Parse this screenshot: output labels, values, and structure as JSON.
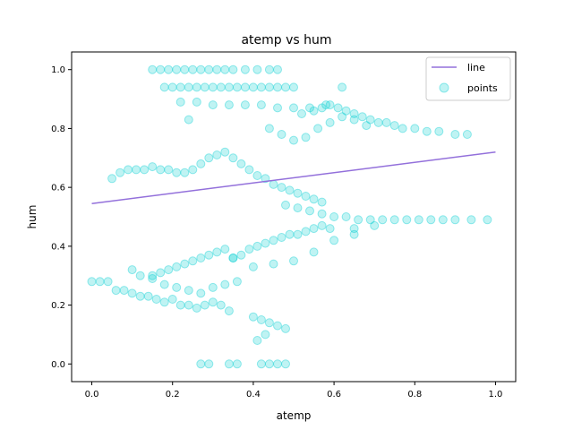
{
  "chart_data": {
    "type": "scatter",
    "title": "atemp vs hum",
    "xlabel": "atemp",
    "ylabel": "hum",
    "xlim": [
      -0.05,
      1.05
    ],
    "ylim": [
      -0.06,
      1.06
    ],
    "xticks": [
      0.0,
      0.2,
      0.4,
      0.6,
      0.8,
      1.0
    ],
    "yticks": [
      0.0,
      0.2,
      0.4,
      0.6,
      0.8,
      1.0
    ],
    "xtick_labels": [
      "0.0",
      "0.2",
      "0.4",
      "0.6",
      "0.8",
      "1.0"
    ],
    "ytick_labels": [
      "0.0",
      "0.2",
      "0.4",
      "0.6",
      "0.8",
      "1.0"
    ],
    "grid": false,
    "legend_position": "top-right",
    "colors": {
      "points": "#00ced1",
      "line": "#9370db"
    },
    "series": [
      {
        "name": "line",
        "kind": "line",
        "x": [
          0.0,
          1.0
        ],
        "y": [
          0.545,
          0.72
        ]
      },
      {
        "name": "points",
        "kind": "scatter",
        "x": [
          0.15,
          0.17,
          0.19,
          0.21,
          0.23,
          0.25,
          0.27,
          0.29,
          0.31,
          0.33,
          0.35,
          0.38,
          0.41,
          0.44,
          0.46,
          0.18,
          0.2,
          0.22,
          0.24,
          0.26,
          0.28,
          0.3,
          0.32,
          0.34,
          0.36,
          0.38,
          0.4,
          0.42,
          0.44,
          0.46,
          0.48,
          0.5,
          0.22,
          0.26,
          0.3,
          0.34,
          0.38,
          0.42,
          0.46,
          0.5,
          0.54,
          0.58,
          0.52,
          0.55,
          0.57,
          0.59,
          0.61,
          0.63,
          0.65,
          0.67,
          0.69,
          0.71,
          0.73,
          0.75,
          0.77,
          0.8,
          0.83,
          0.86,
          0.9,
          0.93,
          0.44,
          0.47,
          0.5,
          0.53,
          0.56,
          0.59,
          0.62,
          0.65,
          0.68,
          0.05,
          0.07,
          0.09,
          0.11,
          0.13,
          0.15,
          0.17,
          0.19,
          0.21,
          0.23,
          0.25,
          0.27,
          0.29,
          0.31,
          0.33,
          0.35,
          0.37,
          0.39,
          0.41,
          0.43,
          0.45,
          0.47,
          0.49,
          0.51,
          0.53,
          0.55,
          0.57,
          0.48,
          0.51,
          0.54,
          0.57,
          0.6,
          0.63,
          0.66,
          0.69,
          0.72,
          0.75,
          0.78,
          0.81,
          0.84,
          0.87,
          0.9,
          0.94,
          0.98,
          0.15,
          0.17,
          0.19,
          0.21,
          0.23,
          0.25,
          0.27,
          0.29,
          0.31,
          0.33,
          0.35,
          0.37,
          0.39,
          0.41,
          0.43,
          0.45,
          0.47,
          0.49,
          0.51,
          0.53,
          0.55,
          0.57,
          0.59,
          0.35,
          0.4,
          0.45,
          0.5,
          0.55,
          0.6,
          0.65,
          0.7,
          0.0,
          0.02,
          0.04,
          0.06,
          0.08,
          0.1,
          0.12,
          0.14,
          0.16,
          0.18,
          0.2,
          0.22,
          0.24,
          0.26,
          0.28,
          0.3,
          0.32,
          0.34,
          0.1,
          0.12,
          0.15,
          0.18,
          0.21,
          0.24,
          0.27,
          0.3,
          0.33,
          0.36,
          0.27,
          0.29,
          0.34,
          0.36,
          0.42,
          0.44,
          0.46,
          0.48,
          0.4,
          0.42,
          0.44,
          0.46,
          0.48,
          0.41,
          0.43,
          0.24,
          0.62,
          0.65
        ],
        "y": [
          1.0,
          1.0,
          1.0,
          1.0,
          1.0,
          1.0,
          1.0,
          1.0,
          1.0,
          1.0,
          1.0,
          1.0,
          1.0,
          1.0,
          1.0,
          0.94,
          0.94,
          0.94,
          0.94,
          0.94,
          0.94,
          0.94,
          0.94,
          0.94,
          0.94,
          0.94,
          0.94,
          0.94,
          0.94,
          0.94,
          0.94,
          0.94,
          0.89,
          0.89,
          0.88,
          0.88,
          0.88,
          0.88,
          0.87,
          0.87,
          0.87,
          0.88,
          0.85,
          0.86,
          0.87,
          0.88,
          0.87,
          0.86,
          0.85,
          0.84,
          0.83,
          0.82,
          0.82,
          0.81,
          0.8,
          0.8,
          0.79,
          0.79,
          0.78,
          0.78,
          0.8,
          0.78,
          0.76,
          0.77,
          0.8,
          0.82,
          0.84,
          0.83,
          0.81,
          0.63,
          0.65,
          0.66,
          0.66,
          0.66,
          0.67,
          0.66,
          0.66,
          0.65,
          0.65,
          0.66,
          0.68,
          0.7,
          0.71,
          0.72,
          0.7,
          0.68,
          0.66,
          0.64,
          0.63,
          0.61,
          0.6,
          0.59,
          0.58,
          0.57,
          0.56,
          0.55,
          0.54,
          0.53,
          0.52,
          0.51,
          0.5,
          0.5,
          0.49,
          0.49,
          0.49,
          0.49,
          0.49,
          0.49,
          0.49,
          0.49,
          0.49,
          0.49,
          0.49,
          0.3,
          0.31,
          0.32,
          0.33,
          0.34,
          0.35,
          0.36,
          0.37,
          0.38,
          0.39,
          0.36,
          0.37,
          0.39,
          0.4,
          0.41,
          0.42,
          0.43,
          0.44,
          0.44,
          0.45,
          0.46,
          0.47,
          0.46,
          0.36,
          0.33,
          0.34,
          0.35,
          0.38,
          0.42,
          0.46,
          0.47,
          0.28,
          0.28,
          0.28,
          0.25,
          0.25,
          0.24,
          0.23,
          0.23,
          0.22,
          0.21,
          0.22,
          0.2,
          0.2,
          0.19,
          0.2,
          0.21,
          0.2,
          0.18,
          0.32,
          0.3,
          0.29,
          0.27,
          0.26,
          0.25,
          0.24,
          0.26,
          0.27,
          0.28,
          0.0,
          0.0,
          0.0,
          0.0,
          0.0,
          0.0,
          0.0,
          0.0,
          0.16,
          0.15,
          0.14,
          0.13,
          0.12,
          0.08,
          0.1,
          0.83,
          0.94,
          0.44
        ]
      }
    ]
  }
}
